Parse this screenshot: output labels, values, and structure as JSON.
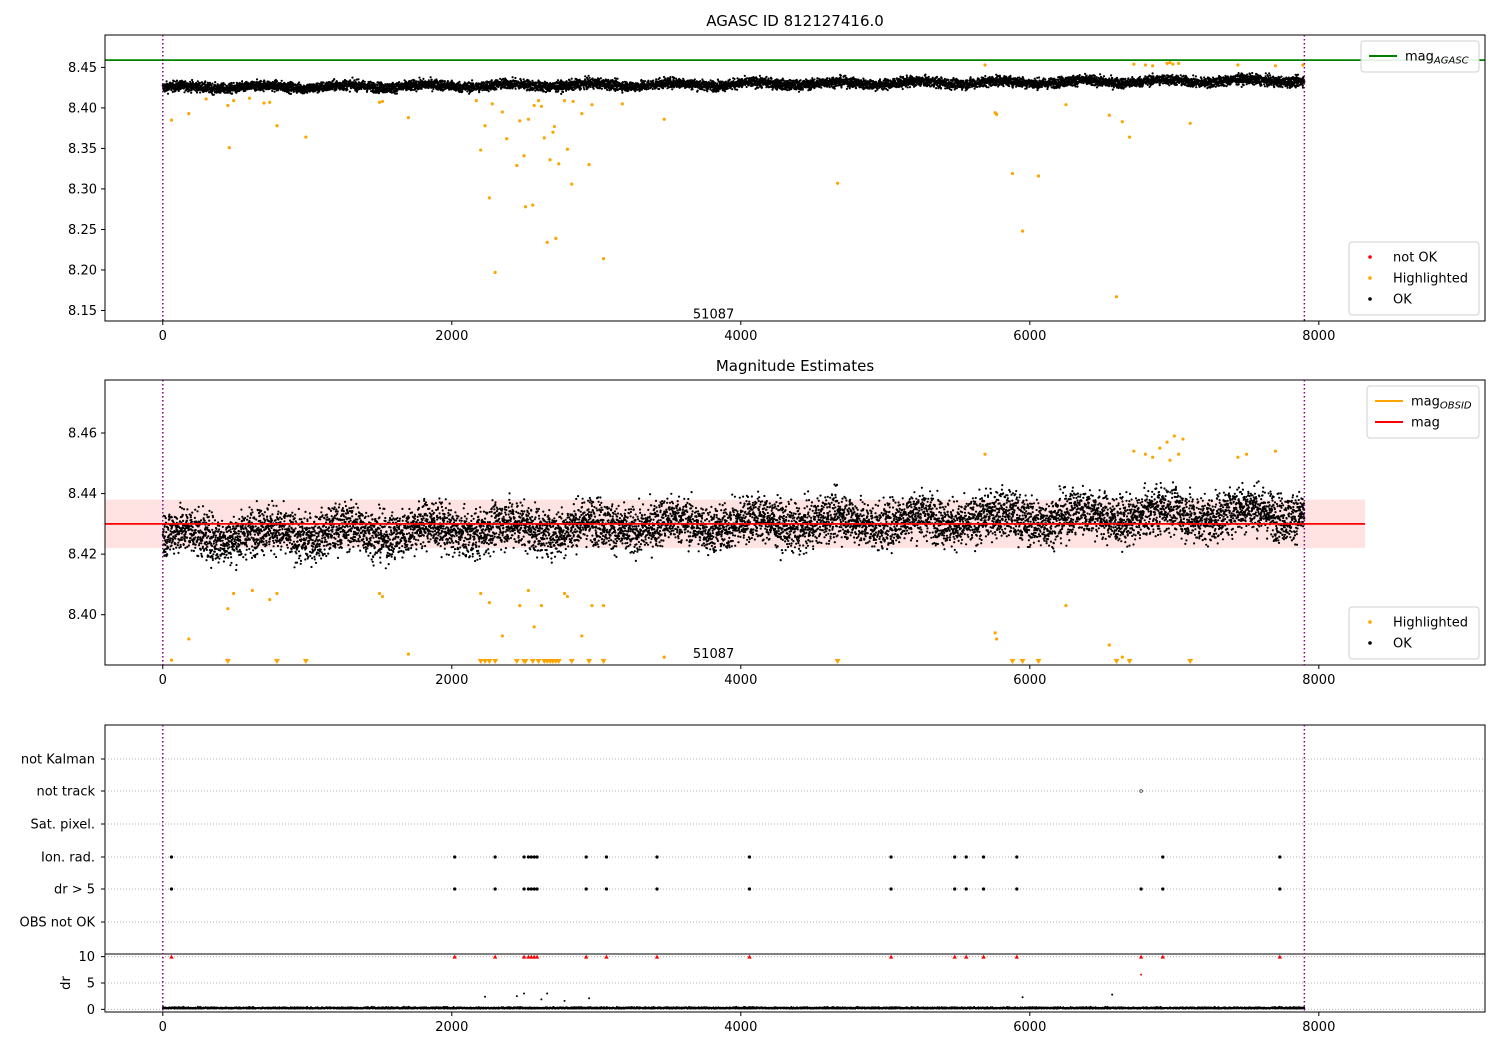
{
  "chart_data": [
    {
      "type": "scatter",
      "title": "AGASC ID 812127416.0",
      "xlim": [
        -400,
        9150
      ],
      "ylim": [
        8.137,
        8.49
      ],
      "xticks": [
        0,
        2000,
        4000,
        6000,
        8000
      ],
      "yticks": [
        8.15,
        8.2,
        8.25,
        8.3,
        8.35,
        8.4,
        8.45
      ],
      "vlines": [
        0,
        7900
      ],
      "hline": {
        "y": 8.459,
        "color": "#008000"
      },
      "annotation": {
        "text": "51087",
        "x": 3950,
        "y": 8.145
      },
      "legend_top": {
        "position": "top-right",
        "entries": [
          {
            "label": "mag",
            "subscript": "AGASC",
            "color": "#008000",
            "marker": "line"
          }
        ]
      },
      "legend_bottom": {
        "position": "bottom-right",
        "entries": [
          {
            "label": "not OK",
            "color": "#ff0000",
            "marker": "dot"
          },
          {
            "label": "Highlighted",
            "color": "#ffa500",
            "marker": "dot"
          },
          {
            "label": "OK",
            "color": "#000000",
            "marker": "dot"
          }
        ]
      },
      "ok_band": {
        "x_range": [
          0,
          7900
        ],
        "center_start": 8.425,
        "center_end": 8.434,
        "spread": 0.009
      },
      "highlighted_points": [
        [
          60,
          8.385
        ],
        [
          180,
          8.393
        ],
        [
          300,
          8.411
        ],
        [
          450,
          8.403
        ],
        [
          460,
          8.351
        ],
        [
          490,
          8.409
        ],
        [
          600,
          8.412
        ],
        [
          700,
          8.406
        ],
        [
          740,
          8.407
        ],
        [
          790,
          8.378
        ],
        [
          990,
          8.364
        ],
        [
          1500,
          8.407
        ],
        [
          1520,
          8.408
        ],
        [
          1700,
          8.388
        ],
        [
          2170,
          8.409
        ],
        [
          2200,
          8.348
        ],
        [
          2230,
          8.378
        ],
        [
          2260,
          8.289
        ],
        [
          2280,
          8.405
        ],
        [
          2300,
          8.197
        ],
        [
          2350,
          8.395
        ],
        [
          2380,
          8.362
        ],
        [
          2450,
          8.329
        ],
        [
          2470,
          8.384
        ],
        [
          2500,
          8.341
        ],
        [
          2510,
          8.278
        ],
        [
          2530,
          8.386
        ],
        [
          2560,
          8.28
        ],
        [
          2570,
          8.403
        ],
        [
          2600,
          8.409
        ],
        [
          2620,
          8.402
        ],
        [
          2640,
          8.363
        ],
        [
          2660,
          8.234
        ],
        [
          2680,
          8.336
        ],
        [
          2700,
          8.37
        ],
        [
          2710,
          8.377
        ],
        [
          2720,
          8.239
        ],
        [
          2740,
          8.331
        ],
        [
          2780,
          8.409
        ],
        [
          2800,
          8.349
        ],
        [
          2830,
          8.306
        ],
        [
          2840,
          8.408
        ],
        [
          2900,
          8.393
        ],
        [
          2950,
          8.33
        ],
        [
          2970,
          8.404
        ],
        [
          3050,
          8.214
        ],
        [
          3180,
          8.405
        ],
        [
          3470,
          8.386
        ],
        [
          4670,
          8.307
        ],
        [
          5690,
          8.453
        ],
        [
          5760,
          8.394
        ],
        [
          5770,
          8.392
        ],
        [
          5880,
          8.319
        ],
        [
          5950,
          8.248
        ],
        [
          6060,
          8.316
        ],
        [
          6250,
          8.404
        ],
        [
          6550,
          8.391
        ],
        [
          6600,
          8.167
        ],
        [
          6640,
          8.383
        ],
        [
          6690,
          8.364
        ],
        [
          6720,
          8.454
        ],
        [
          6800,
          8.453
        ],
        [
          6850,
          8.452
        ],
        [
          6950,
          8.455
        ],
        [
          6970,
          8.456
        ],
        [
          6990,
          8.454
        ],
        [
          7030,
          8.455
        ],
        [
          7110,
          8.381
        ],
        [
          7440,
          8.453
        ],
        [
          7700,
          8.452
        ],
        [
          7890,
          8.453
        ]
      ]
    },
    {
      "type": "scatter",
      "title": "Magnitude Estimates",
      "xlim": [
        -400,
        9150
      ],
      "ylim": [
        8.3834,
        8.4775
      ],
      "xticks": [
        0,
        2000,
        4000,
        6000,
        8000
      ],
      "yticks": [
        8.4,
        8.42,
        8.44,
        8.46
      ],
      "vlines": [
        0,
        7900
      ],
      "hline": {
        "y": 8.43,
        "color": "#ff0000"
      },
      "band": {
        "y_low": 8.422,
        "y_high": 8.438,
        "x_range": [
          -400,
          8320
        ],
        "color": "#ffc0c0"
      },
      "annotation": {
        "text": "51087",
        "x": 3950,
        "y": 8.387
      },
      "legend_top": {
        "position": "top-right",
        "entries": [
          {
            "label": "mag",
            "subscript": "OBSID",
            "color": "#ffa500",
            "marker": "line"
          },
          {
            "label": "mag",
            "subscript": "",
            "color": "#ff0000",
            "marker": "line"
          }
        ]
      },
      "legend_bottom": {
        "position": "bottom-right",
        "entries": [
          {
            "label": "Highlighted",
            "color": "#ffa500",
            "marker": "dot"
          },
          {
            "label": "OK",
            "color": "#000000",
            "marker": "dot"
          }
        ]
      },
      "ok_band": {
        "x_range": [
          0,
          7900
        ],
        "center_start": 8.426,
        "center_end": 8.434,
        "spread": 0.011
      },
      "highlighted_points": [
        [
          60,
          8.385
        ],
        [
          180,
          8.392
        ],
        [
          450,
          8.402
        ],
        [
          490,
          8.407
        ],
        [
          620,
          8.408
        ],
        [
          740,
          8.405
        ],
        [
          790,
          8.407
        ],
        [
          1500,
          8.407
        ],
        [
          1520,
          8.406
        ],
        [
          1700,
          8.387
        ],
        [
          2200,
          8.407
        ],
        [
          2260,
          8.404
        ],
        [
          2350,
          8.393
        ],
        [
          2470,
          8.403
        ],
        [
          2530,
          8.408
        ],
        [
          2570,
          8.396
        ],
        [
          2620,
          8.403
        ],
        [
          2780,
          8.407
        ],
        [
          2800,
          8.406
        ],
        [
          2900,
          8.393
        ],
        [
          2970,
          8.403
        ],
        [
          3050,
          8.403
        ],
        [
          3470,
          8.386
        ],
        [
          5690,
          8.453
        ],
        [
          5760,
          8.394
        ],
        [
          5770,
          8.392
        ],
        [
          6250,
          8.403
        ],
        [
          6550,
          8.39
        ],
        [
          6640,
          8.386
        ],
        [
          6720,
          8.454
        ],
        [
          6800,
          8.453
        ],
        [
          6850,
          8.452
        ],
        [
          6900,
          8.455
        ],
        [
          6950,
          8.457
        ],
        [
          6970,
          8.451
        ],
        [
          7000,
          8.459
        ],
        [
          7030,
          8.453
        ],
        [
          7060,
          8.458
        ],
        [
          7440,
          8.452
        ],
        [
          7500,
          8.453
        ],
        [
          7700,
          8.454
        ]
      ],
      "clipped_low_x": [
        450,
        790,
        990,
        2200,
        2230,
        2260,
        2300,
        2450,
        2500,
        2510,
        2560,
        2600,
        2640,
        2660,
        2680,
        2700,
        2720,
        2740,
        2830,
        2950,
        3050,
        4670,
        5880,
        5950,
        6060,
        6600,
        6690,
        7110
      ]
    },
    {
      "type": "scatter",
      "title": "",
      "xlim": [
        -400,
        9150
      ],
      "xticks": [
        0,
        2000,
        4000,
        6000,
        8000
      ],
      "vlines": [
        0,
        7900
      ],
      "flag_labels": [
        "not Kalman",
        "not track",
        "Sat. pixel.",
        "Ion. rad.",
        "dr > 5",
        "OBS not OK"
      ],
      "flags": {
        "not track": [
          6770
        ],
        "Ion. rad.": [
          60,
          2020,
          2300,
          2500,
          2530,
          2550,
          2570,
          2590,
          2930,
          3070,
          3420,
          4060,
          5040,
          5480,
          5560,
          5680,
          5910,
          6920,
          7730
        ],
        "dr > 5": [
          60,
          2020,
          2300,
          2500,
          2530,
          2550,
          2570,
          2590,
          2930,
          3070,
          3420,
          4060,
          5040,
          5480,
          5560,
          5680,
          5910,
          6770,
          6920,
          7730
        ]
      },
      "dr": {
        "ylabel": "dr",
        "ylim": [
          -0.5,
          10.5
        ],
        "yticks": [
          0,
          5,
          10
        ],
        "clip_value": 10,
        "clipped_x": [
          60,
          2020,
          2300,
          2500,
          2530,
          2550,
          2570,
          2590,
          2930,
          3070,
          3420,
          4060,
          5040,
          5480,
          5560,
          5680,
          5910,
          6770,
          6920,
          7730
        ],
        "high_points": [
          [
            2230,
            2.4
          ],
          [
            2450,
            2.5
          ],
          [
            2500,
            3.0
          ],
          [
            2620,
            1.9
          ],
          [
            2660,
            3.0
          ],
          [
            2780,
            1.6
          ],
          [
            2950,
            2.1
          ],
          [
            5950,
            2.3
          ],
          [
            6570,
            2.8
          ],
          [
            6770,
            6.6
          ]
        ]
      }
    }
  ]
}
